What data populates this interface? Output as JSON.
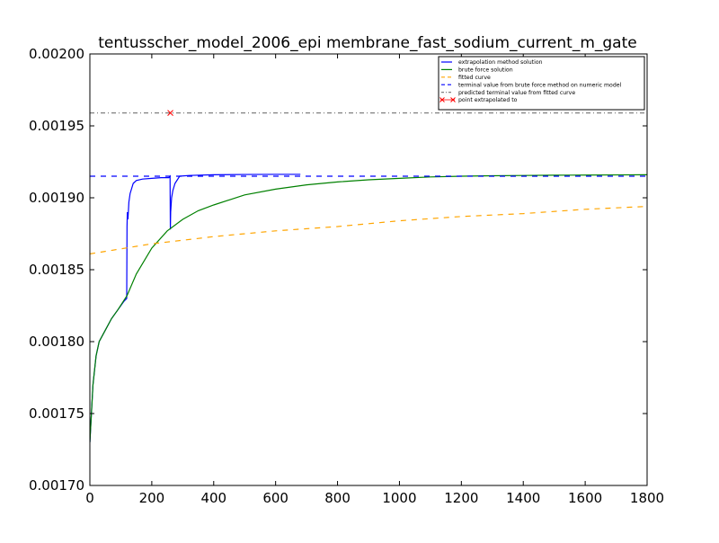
{
  "chart_data": {
    "type": "line",
    "title": "tentusscher_model_2006_epi membrane_fast_sodium_current_m_gate",
    "xlabel": "",
    "ylabel": "",
    "xlim": [
      0,
      1800
    ],
    "ylim": [
      0.0017,
      0.002
    ],
    "x_ticks": [
      0,
      200,
      400,
      600,
      800,
      1000,
      1200,
      1400,
      1600,
      1800
    ],
    "x_tick_labels": [
      "0",
      "200",
      "400",
      "600",
      "800",
      "1000",
      "1200",
      "1400",
      "1600",
      "1800"
    ],
    "y_ticks": [
      0.0017,
      0.00175,
      0.0018,
      0.00185,
      0.0019,
      0.00195,
      0.002
    ],
    "y_tick_labels": [
      "0.00170",
      "0.00175",
      "0.00180",
      "0.00185",
      "0.00190",
      "0.00195",
      "0.00200"
    ],
    "grid": false,
    "legend_position": "top-right",
    "series": [
      {
        "name": "extrapolation method solution",
        "color": "#0000ff",
        "style": "solid",
        "x": [
          0,
          5,
          10,
          20,
          30,
          50,
          70,
          90,
          110,
          119,
          120,
          121,
          123,
          126,
          130,
          140,
          150,
          170,
          200,
          230,
          255,
          259,
          260,
          261,
          264,
          268,
          275,
          290,
          320,
          400,
          500,
          600,
          680
        ],
        "y": [
          0.00173,
          0.00175,
          0.00177,
          0.00179,
          0.0018,
          0.001808,
          0.001816,
          0.001822,
          0.001828,
          0.00183,
          0.00188,
          0.00189,
          0.001885,
          0.001897,
          0.001903,
          0.00191,
          0.001912,
          0.001913,
          0.0019135,
          0.001914,
          0.001914,
          0.001915,
          0.001878,
          0.00189,
          0.0019,
          0.001905,
          0.00191,
          0.001915,
          0.0019155,
          0.001916,
          0.0019162,
          0.0019163,
          0.0019163
        ]
      },
      {
        "name": "brute force solution",
        "color": "#008000",
        "style": "solid",
        "x": [
          0,
          5,
          10,
          20,
          30,
          50,
          70,
          90,
          120,
          150,
          200,
          250,
          300,
          350,
          400,
          500,
          600,
          700,
          800,
          900,
          1000,
          1100,
          1200,
          1300,
          1400,
          1500,
          1600,
          1700,
          1800
        ],
        "y": [
          0.00173,
          0.00175,
          0.00177,
          0.00179,
          0.0018,
          0.001808,
          0.001816,
          0.001822,
          0.001832,
          0.001847,
          0.001865,
          0.001877,
          0.001885,
          0.001891,
          0.001895,
          0.001902,
          0.001906,
          0.001909,
          0.001911,
          0.0019125,
          0.0019135,
          0.0019145,
          0.001915,
          0.0019153,
          0.0019155,
          0.0019157,
          0.0019158,
          0.0019159,
          0.001916
        ]
      },
      {
        "name": "fitted curve",
        "color": "#ffa500",
        "style": "dashed",
        "x": [
          0,
          200,
          400,
          600,
          800,
          1000,
          1200,
          1400,
          1600,
          1800
        ],
        "y": [
          0.001861,
          0.001868,
          0.001873,
          0.001877,
          0.00188,
          0.001884,
          0.001887,
          0.001889,
          0.001892,
          0.001894
        ]
      },
      {
        "name": "terminal value from brute force method on numeric model",
        "color": "#0000ff",
        "style": "dashed",
        "x": [
          0,
          1800
        ],
        "y": [
          0.001915,
          0.001915
        ]
      },
      {
        "name": "predicted terminal value from fitted curve",
        "color": "#808080",
        "style": "dashdot",
        "x": [
          0,
          1800
        ],
        "y": [
          0.001959,
          0.001959
        ]
      },
      {
        "name": "point extrapolated to",
        "color": "#ff0000",
        "style": "marker-x",
        "x": [
          260
        ],
        "y": [
          0.001959
        ]
      }
    ]
  }
}
